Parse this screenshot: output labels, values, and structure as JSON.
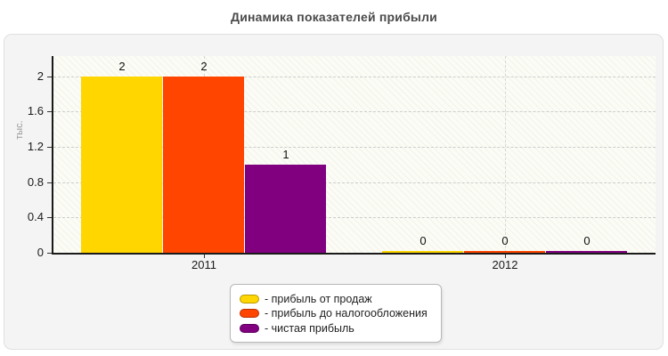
{
  "page": {
    "title": "Динамика показателей прибыли"
  },
  "chart_data": {
    "type": "bar",
    "title": "Динамика показателей прибыли",
    "ylabel": "тыс.",
    "xlabel": "",
    "categories": [
      "2011",
      "2012"
    ],
    "series": [
      {
        "name": "прибыль от продаж",
        "color": "#ffd600",
        "values": [
          2,
          0
        ],
        "value_labels": [
          "2",
          "0"
        ]
      },
      {
        "name": "прибыль до налогообложения",
        "color": "#ff4500",
        "values": [
          2,
          0
        ],
        "value_labels": [
          "2",
          "0"
        ]
      },
      {
        "name": "чистая прибыль",
        "color": "#800080",
        "values": [
          1,
          0
        ],
        "value_labels": [
          "1",
          "0"
        ]
      }
    ],
    "yticks": [
      {
        "value": 0,
        "label": "0"
      },
      {
        "value": 0.4,
        "label": "0.4"
      },
      {
        "value": 0.8,
        "label": "0.8"
      },
      {
        "value": 1.2,
        "label": "1.2"
      },
      {
        "value": 1.6,
        "label": "1.6"
      },
      {
        "value": 2,
        "label": "2"
      }
    ],
    "ylim": [
      0,
      2.23
    ],
    "grid": {
      "horizontal": "dashed",
      "vertical_at_category_centers": "dashed"
    },
    "value_labels_shown": true,
    "legend": {
      "position": "bottom-center",
      "items": [
        {
          "label": "- прибыль от продаж",
          "color": "#ffd600"
        },
        {
          "label": "- прибыль до налогообложения",
          "color": "#ff4500"
        },
        {
          "label": "- чистая прибыль",
          "color": "#800080"
        }
      ]
    },
    "colors": {
      "axis": "#1a1a1a",
      "grid": "#cdcdcd",
      "panel_background": "#f4f4f4",
      "plot_background": "#fcfcf6",
      "title_text": "#4a4a4a"
    }
  }
}
